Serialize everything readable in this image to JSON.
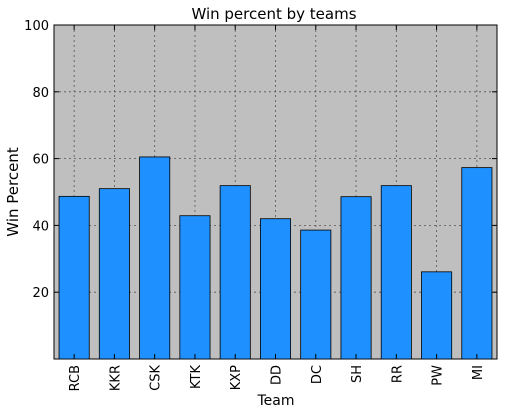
{
  "chart_data": {
    "type": "bar",
    "title": "Win percent by teams",
    "xlabel": "Team",
    "ylabel": "Win Percent",
    "categories": [
      "RCB",
      "KKR",
      "CSK",
      "KTK",
      "KXP",
      "DD",
      "DC",
      "SH",
      "RR",
      "PW",
      "MI"
    ],
    "values": [
      48.7,
      51.0,
      60.5,
      42.9,
      51.9,
      42.0,
      38.6,
      48.6,
      51.9,
      26.1,
      57.3
    ],
    "ylim": [
      0,
      100
    ],
    "yticks": [
      20,
      40,
      60,
      80,
      100
    ],
    "grid": true,
    "colors": {
      "bar": "#1e90ff",
      "background": "#bfbfbf"
    }
  }
}
